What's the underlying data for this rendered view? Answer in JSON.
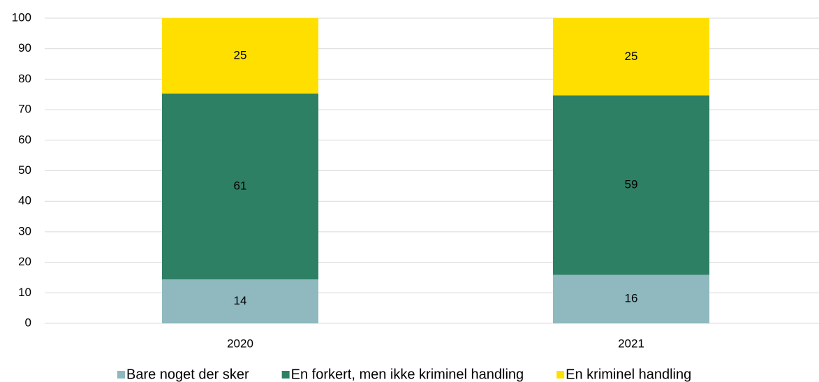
{
  "chart_data": {
    "type": "stacked_bar",
    "categories": [
      "2020",
      "2021"
    ],
    "series": [
      {
        "name": "Bare noget der sker",
        "color": "#8fb8bf",
        "values": [
          14.4,
          15.9
        ],
        "value_labels": [
          "14",
          "16"
        ]
      },
      {
        "name": "En forkert, men ikke kriminel handling",
        "color": "#2e8064",
        "values": [
          60.9,
          58.8
        ],
        "value_labels": [
          "61",
          "59"
        ]
      },
      {
        "name": "En kriminel handling",
        "color": "#ffdf00",
        "values": [
          24.7,
          25.3
        ],
        "value_labels": [
          "25",
          "25"
        ]
      }
    ],
    "ylim": [
      0,
      100
    ],
    "yticks": [
      0,
      10,
      20,
      30,
      40,
      50,
      60,
      70,
      80,
      90,
      100
    ],
    "grid": true,
    "legend": "bottom"
  }
}
